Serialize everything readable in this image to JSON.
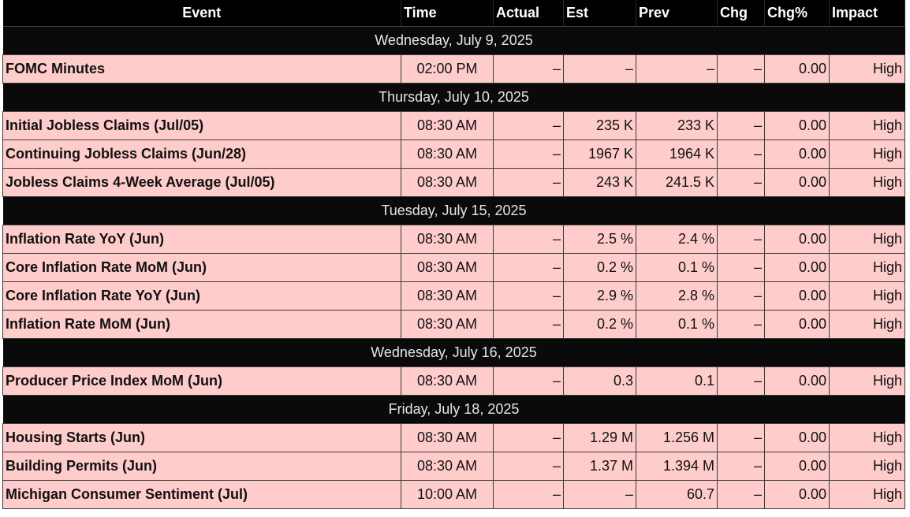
{
  "headers": {
    "event": "Event",
    "time": "Time",
    "actual": "Actual",
    "est": "Est",
    "prev": "Prev",
    "chg": "Chg",
    "chg_pct": "Chg%",
    "impact": "Impact"
  },
  "colors": {
    "header_bg": "#000000",
    "date_row_bg": "#0a0a0a",
    "event_row_bg": "#ffcccc"
  },
  "groups": [
    {
      "date": "Wednesday, July 9, 2025",
      "events": [
        {
          "event": "FOMC Minutes",
          "time": "02:00 PM",
          "actual": "–",
          "est": "–",
          "prev": "–",
          "chg": "–",
          "chg_pct": "0.00",
          "impact": "High"
        }
      ]
    },
    {
      "date": "Thursday, July 10, 2025",
      "events": [
        {
          "event": "Initial Jobless Claims (Jul/05)",
          "time": "08:30 AM",
          "actual": "–",
          "est": "235 K",
          "prev": "233 K",
          "chg": "–",
          "chg_pct": "0.00",
          "impact": "High"
        },
        {
          "event": "Continuing Jobless Claims (Jun/28)",
          "time": "08:30 AM",
          "actual": "–",
          "est": "1967 K",
          "prev": "1964 K",
          "chg": "–",
          "chg_pct": "0.00",
          "impact": "High"
        },
        {
          "event": "Jobless Claims 4-Week Average (Jul/05)",
          "time": "08:30 AM",
          "actual": "–",
          "est": "243 K",
          "prev": "241.5 K",
          "chg": "–",
          "chg_pct": "0.00",
          "impact": "High"
        }
      ]
    },
    {
      "date": "Tuesday, July 15, 2025",
      "events": [
        {
          "event": "Inflation Rate YoY (Jun)",
          "time": "08:30 AM",
          "actual": "–",
          "est": "2.5 %",
          "prev": "2.4 %",
          "chg": "–",
          "chg_pct": "0.00",
          "impact": "High"
        },
        {
          "event": "Core Inflation Rate MoM (Jun)",
          "time": "08:30 AM",
          "actual": "–",
          "est": "0.2 %",
          "prev": "0.1 %",
          "chg": "–",
          "chg_pct": "0.00",
          "impact": "High"
        },
        {
          "event": "Core Inflation Rate YoY (Jun)",
          "time": "08:30 AM",
          "actual": "–",
          "est": "2.9 %",
          "prev": "2.8 %",
          "chg": "–",
          "chg_pct": "0.00",
          "impact": "High"
        },
        {
          "event": "Inflation Rate MoM (Jun)",
          "time": "08:30 AM",
          "actual": "–",
          "est": "0.2 %",
          "prev": "0.1 %",
          "chg": "–",
          "chg_pct": "0.00",
          "impact": "High"
        }
      ]
    },
    {
      "date": "Wednesday, July 16, 2025",
      "events": [
        {
          "event": "Producer Price Index MoM (Jun)",
          "time": "08:30 AM",
          "actual": "–",
          "est": "0.3",
          "prev": "0.1",
          "chg": "–",
          "chg_pct": "0.00",
          "impact": "High"
        }
      ]
    },
    {
      "date": "Friday, July 18, 2025",
      "events": [
        {
          "event": "Housing Starts (Jun)",
          "time": "08:30 AM",
          "actual": "–",
          "est": "1.29 M",
          "prev": "1.256 M",
          "chg": "–",
          "chg_pct": "0.00",
          "impact": "High"
        },
        {
          "event": "Building Permits (Jun)",
          "time": "08:30 AM",
          "actual": "–",
          "est": "1.37 M",
          "prev": "1.394 M",
          "chg": "–",
          "chg_pct": "0.00",
          "impact": "High"
        },
        {
          "event": "Michigan Consumer Sentiment (Jul)",
          "time": "10:00 AM",
          "actual": "–",
          "est": "–",
          "prev": "60.7",
          "chg": "–",
          "chg_pct": "0.00",
          "impact": "High"
        }
      ]
    }
  ]
}
